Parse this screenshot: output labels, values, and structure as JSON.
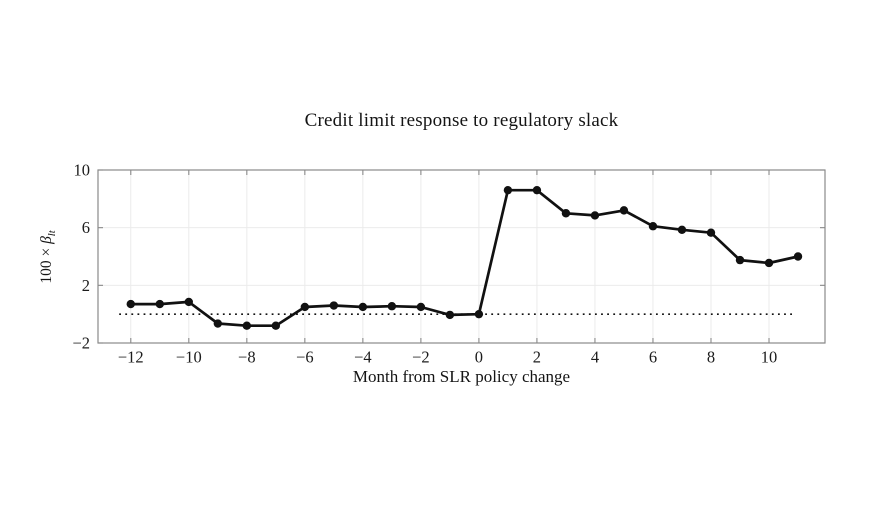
{
  "chart_data": {
    "type": "line",
    "title": "Credit limit response to regulatory slack",
    "xlabel": "Month from SLR policy change",
    "ylabel": "100 × β_lt",
    "ylabel_parts": {
      "prefix": "100 × ",
      "symbol": "β",
      "subscript": "lt"
    },
    "x": [
      -12,
      -11,
      -10,
      -9,
      -8,
      -7,
      -6,
      -5,
      -4,
      -3,
      -2,
      -1,
      0,
      1,
      2,
      3,
      4,
      5,
      6,
      7,
      8,
      9,
      10,
      11
    ],
    "y": [
      0.7,
      0.7,
      0.85,
      -0.65,
      -0.8,
      -0.8,
      0.5,
      0.6,
      0.5,
      0.55,
      0.5,
      -0.05,
      0.0,
      8.6,
      8.6,
      7.0,
      6.85,
      7.2,
      6.1,
      5.85,
      5.65,
      3.75,
      3.55,
      4.0
    ],
    "xlim": [
      -13.13,
      11.93
    ],
    "ylim": [
      -2,
      10
    ],
    "x_ticks": {
      "values": [
        -12,
        -10,
        -8,
        -6,
        -4,
        -2,
        0,
        2,
        4,
        6,
        8,
        10
      ],
      "labels": [
        "−12",
        "−10",
        "−8",
        "−6",
        "−4",
        "−2",
        "0",
        "2",
        "4",
        "6",
        "8",
        "10"
      ]
    },
    "y_ticks": {
      "values": [
        10,
        6,
        2,
        -2
      ],
      "labels": [
        "10",
        "6",
        "2",
        "−2"
      ]
    },
    "grid": true,
    "legend": "none",
    "marker": "filled-circle",
    "zero_line": {
      "y": 0,
      "x_start": -12.4,
      "x_end": 10.85,
      "style": "dotted"
    },
    "colors": {
      "series": "#111111",
      "grid": "#ebebeb",
      "axis": "#8a8a8a",
      "text": "#1c1c1c",
      "background": "#ffffff"
    }
  }
}
